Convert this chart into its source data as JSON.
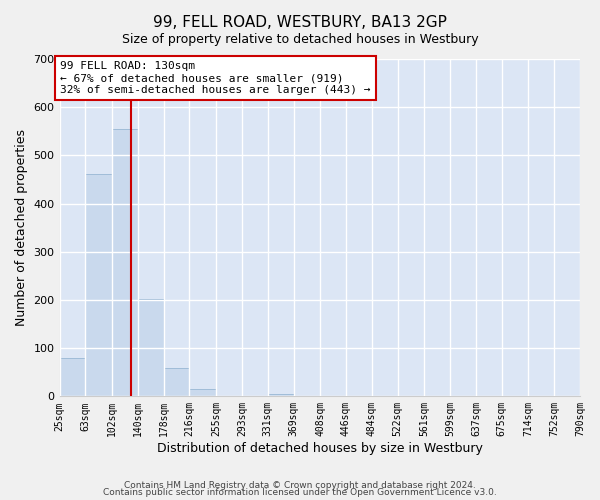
{
  "title": "99, FELL ROAD, WESTBURY, BA13 2GP",
  "subtitle": "Size of property relative to detached houses in Westbury",
  "xlabel": "Distribution of detached houses by size in Westbury",
  "ylabel": "Number of detached properties",
  "bar_color": "#c9d9ed",
  "bar_edge_color": "#a0bcd8",
  "background_color": "#dce6f5",
  "grid_color": "#ffffff",
  "fig_color": "#f0f0f0",
  "property_line_x": 130,
  "property_line_color": "#cc0000",
  "annotation_box_color": "#cc0000",
  "bin_edges": [
    25,
    63,
    102,
    140,
    178,
    216,
    255,
    293,
    331,
    369,
    408,
    446,
    484,
    522,
    561,
    599,
    637,
    675,
    714,
    752,
    790
  ],
  "bin_labels": [
    "25sqm",
    "63sqm",
    "102sqm",
    "140sqm",
    "178sqm",
    "216sqm",
    "255sqm",
    "293sqm",
    "331sqm",
    "369sqm",
    "408sqm",
    "446sqm",
    "484sqm",
    "522sqm",
    "561sqm",
    "599sqm",
    "637sqm",
    "675sqm",
    "714sqm",
    "752sqm",
    "790sqm"
  ],
  "bar_heights": [
    80,
    462,
    554,
    202,
    58,
    15,
    0,
    0,
    5,
    0,
    0,
    0,
    0,
    0,
    0,
    0,
    0,
    0,
    0,
    0
  ],
  "ylim": [
    0,
    700
  ],
  "yticks": [
    0,
    100,
    200,
    300,
    400,
    500,
    600,
    700
  ],
  "annotation_line1": "99 FELL ROAD: 130sqm",
  "annotation_line2": "← 67% of detached houses are smaller (919)",
  "annotation_line3": "32% of semi-detached houses are larger (443) →",
  "footer_line1": "Contains HM Land Registry data © Crown copyright and database right 2024.",
  "footer_line2": "Contains public sector information licensed under the Open Government Licence v3.0."
}
